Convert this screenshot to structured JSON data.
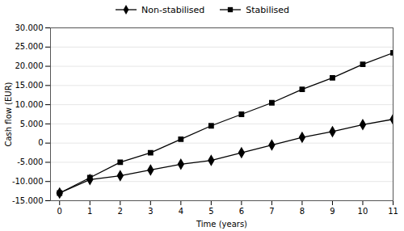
{
  "chart_data": {
    "type": "line",
    "x": [
      0,
      1,
      2,
      3,
      4,
      5,
      6,
      7,
      8,
      9,
      10,
      11
    ],
    "series": [
      {
        "name": "Non-stabilised",
        "color": "#000000",
        "marker": "diamond",
        "values": [
          -13000,
          -9500,
          -8500,
          -7000,
          -5500,
          -4500,
          -2500,
          -500,
          1500,
          3000,
          4800,
          6200
        ]
      },
      {
        "name": "Stabilised",
        "color": "#000000",
        "marker": "square",
        "values": [
          -13000,
          -9000,
          -5000,
          -2500,
          1000,
          4500,
          7500,
          10500,
          14000,
          17000,
          20500,
          23500
        ]
      }
    ],
    "xlabel": "Time (years)",
    "ylabel": "Cash flow (EUR)",
    "xlim": [
      -0.3,
      11
    ],
    "ylim": [
      -15000,
      30000
    ],
    "xticks": [
      0,
      1,
      2,
      3,
      4,
      5,
      6,
      7,
      8,
      9,
      10,
      11
    ],
    "yticks": [
      {
        "value": -15000,
        "label": "-15.000"
      },
      {
        "value": -10000,
        "label": "-10.000"
      },
      {
        "value": -5000,
        "label": "-5.000"
      },
      0,
      {
        "value": 5000,
        "label": "5.000"
      },
      {
        "value": 10000,
        "label": "10.000"
      },
      {
        "value": 15000,
        "label": "15.000"
      },
      {
        "value": 20000,
        "label": "20.000"
      },
      {
        "value": 25000,
        "label": "25.000"
      },
      {
        "value": 30000,
        "label": "30.000"
      }
    ],
    "grid": "y",
    "legend": "top"
  }
}
